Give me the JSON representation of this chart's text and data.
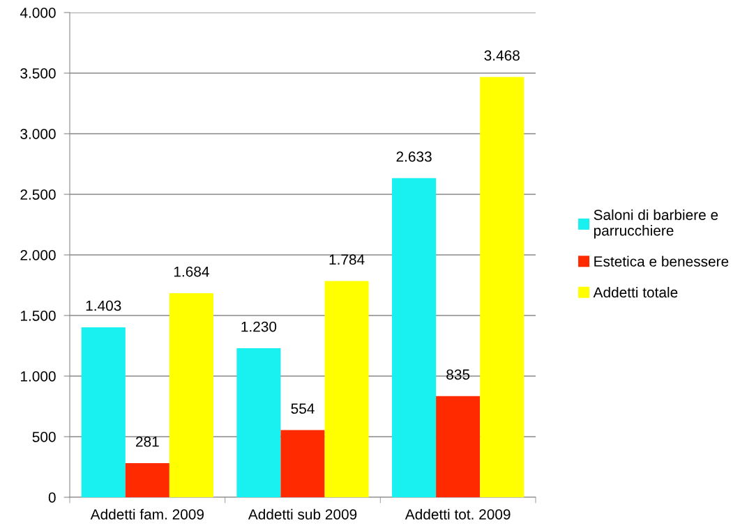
{
  "chart_data": {
    "type": "bar",
    "categories": [
      "Addetti fam. 2009",
      "Addetti sub 2009",
      "Addetti tot. 2009"
    ],
    "series": [
      {
        "name": "Saloni di barbiere e\nparrucchiere",
        "color": "#19f0f0",
        "values": [
          1403,
          1230,
          2633
        ],
        "value_labels": [
          "1.403",
          "1.230",
          "2.633"
        ]
      },
      {
        "name": "Estetica e benessere",
        "color": "#ff2a00",
        "values": [
          281,
          554,
          835
        ],
        "value_labels": [
          "281",
          "554",
          "835"
        ]
      },
      {
        "name": "Addetti totale",
        "color": "#ffff00",
        "values": [
          1684,
          1784,
          3468
        ],
        "value_labels": [
          "1.684",
          "1.784",
          "3.468"
        ]
      }
    ],
    "ylim": [
      0,
      4000
    ],
    "yticks": [
      0,
      500,
      {
        "value": 1000,
        "label": "1.000"
      },
      {
        "value": 1500,
        "label": "1.500"
      },
      {
        "value": 2000,
        "label": "2.000"
      },
      {
        "value": 2500,
        "label": "2.500"
      },
      {
        "value": 3000,
        "label": "3.000"
      },
      {
        "value": 3500,
        "label": "3.500"
      },
      {
        "value": 4000,
        "label": "4.000"
      }
    ],
    "grid": "y",
    "legend": "right"
  }
}
